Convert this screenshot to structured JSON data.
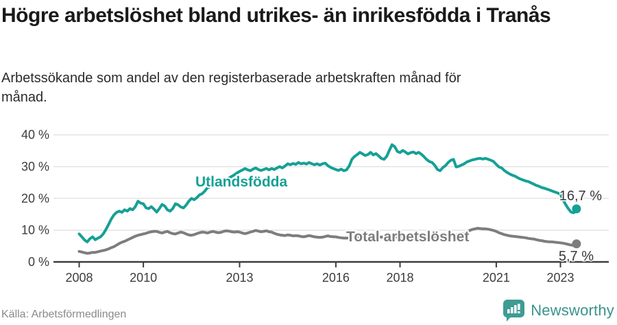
{
  "header": {
    "title": "Högre arbetslöshet bland utrikes- än inrikesfödda i Tranås",
    "subtitle": "Arbetssökande som andel av den registerbaserade arbetskraften månad för månad."
  },
  "footer": {
    "source": "Källa: Arbetsförmedlingen",
    "brand": "Newsworthy"
  },
  "colors": {
    "teal": "#16a095",
    "gray": "#7d7d7d",
    "dark_text": "#3d3d3d",
    "grid": "#e1e1e1",
    "axis": "#3d3d3d",
    "logo_teal": "#3e9c94"
  },
  "chart_data": {
    "type": "line",
    "title": "Högre arbetslöshet bland utrikes- än inrikesfödda i Tranås",
    "subtitle": "Arbetssökande som andel av den registerbaserade arbetskraften månad för månad.",
    "frequency": "monthly",
    "x_start": "2008-01",
    "x_end": "2023-07",
    "ylim": [
      0,
      42
    ],
    "grid": "horizontal",
    "legend_position": "inline-labels",
    "ytick_values": [
      0,
      10,
      20,
      30,
      40
    ],
    "ytick_labels": [
      "0 %",
      "10 %",
      "20 %",
      "30 %",
      "40 %"
    ],
    "xtick_years": [
      2008,
      2010,
      2013,
      2016,
      2018,
      2021,
      2023
    ],
    "series": [
      {
        "name": "Utlandsfödda",
        "color": "#16a095",
        "end_label": "16,7 %",
        "values": [
          8.8,
          7.9,
          6.9,
          6.3,
          7.3,
          7.9,
          7.0,
          7.5,
          7.9,
          8.8,
          10.2,
          11.8,
          13.5,
          14.8,
          15.6,
          16.0,
          15.6,
          16.4,
          16.0,
          16.8,
          16.4,
          17.4,
          19.1,
          18.5,
          18.3,
          17.0,
          16.8,
          17.4,
          16.6,
          15.7,
          16.8,
          18.1,
          17.6,
          16.4,
          16.0,
          16.8,
          18.3,
          18.0,
          17.3,
          17.0,
          17.9,
          19.1,
          20.0,
          19.6,
          20.2,
          21.1,
          21.5,
          22.3,
          23.4,
          23.7,
          24.0,
          24.4,
          24.8,
          25.2,
          25.6,
          26.0,
          26.4,
          26.9,
          27.4,
          28.0,
          28.5,
          28.9,
          29.4,
          29.0,
          28.7,
          29.2,
          29.6,
          29.1,
          28.8,
          29.1,
          29.4,
          29.0,
          29.4,
          29.1,
          29.6,
          30.0,
          29.6,
          30.2,
          30.9,
          30.6,
          31.0,
          30.7,
          31.3,
          30.9,
          31.1,
          30.8,
          31.3,
          30.9,
          30.6,
          30.9,
          30.5,
          30.9,
          31.1,
          30.3,
          29.8,
          29.4,
          29.1,
          28.8,
          29.2,
          28.7,
          29.0,
          30.2,
          32.3,
          33.2,
          33.8,
          34.5,
          34.0,
          33.5,
          33.8,
          34.5,
          33.7,
          34.1,
          33.4,
          32.6,
          32.3,
          33.2,
          35.1,
          36.9,
          36.3,
          34.8,
          34.4,
          35.1,
          34.6,
          34.0,
          34.4,
          34.6,
          34.1,
          34.5,
          33.9,
          33.1,
          32.2,
          31.6,
          31.3,
          30.4,
          29.1,
          28.7,
          29.7,
          30.3,
          31.3,
          32.0,
          32.3,
          29.9,
          30.1,
          30.5,
          30.9,
          31.5,
          31.8,
          32.1,
          32.3,
          32.5,
          32.6,
          32.4,
          32.6,
          32.3,
          32.0,
          31.6,
          30.7,
          29.9,
          29.6,
          28.8,
          28.2,
          27.7,
          27.3,
          27.0,
          26.5,
          26.1,
          25.8,
          25.5,
          25.3,
          24.9,
          24.5,
          24.1,
          23.8,
          23.4,
          23.2,
          22.9,
          22.6,
          22.3,
          22.0,
          21.7,
          21.3,
          19.5,
          18.0,
          16.7,
          15.7,
          15.5,
          16.7
        ]
      },
      {
        "name": "Total arbetslöshet",
        "color": "#7d7d7d",
        "end_label": "5,7 %",
        "values": [
          3.3,
          3.1,
          2.9,
          2.7,
          2.8,
          3.0,
          3.0,
          3.2,
          3.4,
          3.6,
          3.8,
          4.1,
          4.5,
          4.8,
          5.3,
          5.8,
          6.2,
          6.5,
          6.9,
          7.3,
          7.7,
          8.1,
          8.4,
          8.6,
          8.8,
          9.0,
          9.3,
          9.5,
          9.6,
          9.6,
          9.3,
          9.1,
          9.4,
          9.6,
          9.2,
          8.9,
          8.8,
          9.1,
          9.4,
          9.2,
          8.8,
          8.5,
          8.4,
          8.6,
          8.9,
          9.2,
          9.4,
          9.3,
          9.1,
          9.4,
          9.6,
          9.4,
          9.2,
          9.3,
          9.6,
          9.8,
          9.7,
          9.5,
          9.4,
          9.5,
          9.4,
          9.1,
          8.9,
          9.1,
          9.4,
          9.6,
          9.9,
          9.7,
          9.5,
          9.6,
          9.8,
          9.5,
          9.4,
          9.0,
          8.7,
          8.5,
          8.4,
          8.3,
          8.5,
          8.4,
          8.2,
          8.3,
          8.2,
          8.0,
          7.9,
          8.1,
          8.3,
          8.1,
          7.9,
          7.8,
          7.7,
          7.8,
          8.0,
          8.2,
          8.0,
          7.9,
          7.9,
          7.7,
          7.6,
          7.5,
          7.5,
          7.6,
          7.7,
          7.8,
          7.9,
          7.8,
          7.7,
          7.8,
          7.9,
          8.0,
          8.1,
          8.0,
          7.9,
          7.8,
          7.9,
          8.0,
          8.1,
          8.0,
          7.9,
          7.8,
          7.8,
          7.7,
          7.6,
          7.5,
          7.5,
          7.5,
          7.6,
          7.5,
          7.4,
          7.5,
          7.6,
          7.7,
          7.8,
          7.9,
          8.0,
          8.1,
          8.2,
          8.3,
          8.4,
          8.5,
          8.6,
          8.5,
          8.6,
          8.8,
          9.0,
          9.3,
          9.9,
          10.2,
          10.4,
          10.6,
          10.5,
          10.4,
          10.4,
          10.3,
          10.1,
          9.9,
          9.6,
          9.2,
          8.9,
          8.6,
          8.4,
          8.2,
          8.1,
          8.0,
          7.9,
          7.8,
          7.7,
          7.6,
          7.4,
          7.3,
          7.2,
          7.0,
          6.8,
          6.7,
          6.5,
          6.4,
          6.3,
          6.3,
          6.2,
          6.1,
          6.0,
          5.9,
          5.7,
          5.5,
          5.3,
          5.2,
          5.7
        ]
      }
    ]
  }
}
